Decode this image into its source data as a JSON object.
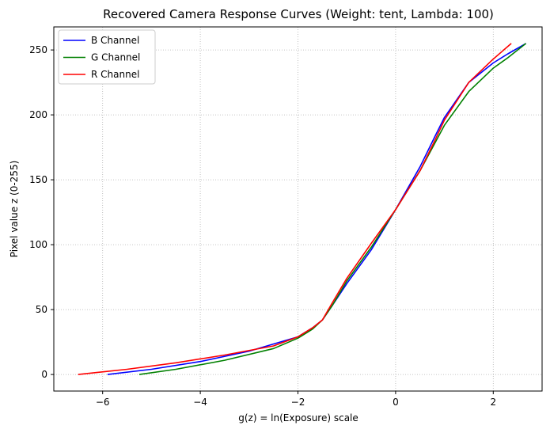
{
  "chart_data": {
    "type": "line",
    "title": "Recovered Camera Response Curves (Weight: tent, Lambda: 100)",
    "xlabel": "g(z) = ln(Exposure) scale",
    "ylabel": "Pixel value z (0-255)",
    "xlim": [
      -7.0,
      3.0
    ],
    "ylim": [
      -12.75,
      267.75
    ],
    "xticks": [
      -6,
      -4,
      -2,
      0,
      2
    ],
    "xtick_labels": [
      "−6",
      "−4",
      "−2",
      "0",
      "2"
    ],
    "yticks": [
      0,
      50,
      100,
      150,
      200,
      250
    ],
    "ytick_labels": [
      "0",
      "50",
      "100",
      "150",
      "200",
      "250"
    ],
    "grid": true,
    "legend_position": "upper-left",
    "series": [
      {
        "name": "B Channel",
        "color": "#0000ff",
        "points": [
          [
            -5.9,
            0
          ],
          [
            -5.0,
            4
          ],
          [
            -4.0,
            10
          ],
          [
            -3.0,
            18
          ],
          [
            -2.0,
            29
          ],
          [
            -1.7,
            36
          ],
          [
            -1.5,
            42
          ],
          [
            -1.3,
            53
          ],
          [
            -1.0,
            70
          ],
          [
            -0.5,
            96
          ],
          [
            0.0,
            127
          ],
          [
            0.5,
            160
          ],
          [
            0.8,
            183
          ],
          [
            1.0,
            198
          ],
          [
            1.5,
            225
          ],
          [
            2.0,
            240
          ],
          [
            2.3,
            247
          ],
          [
            2.67,
            255
          ]
        ]
      },
      {
        "name": "G Channel",
        "color": "#008000",
        "points": [
          [
            -5.25,
            0
          ],
          [
            -4.5,
            4
          ],
          [
            -3.5,
            11
          ],
          [
            -2.5,
            20
          ],
          [
            -2.0,
            28
          ],
          [
            -1.7,
            35
          ],
          [
            -1.5,
            42
          ],
          [
            -1.3,
            53
          ],
          [
            -1.0,
            72
          ],
          [
            -0.5,
            98
          ],
          [
            0.0,
            127
          ],
          [
            0.5,
            157
          ],
          [
            0.8,
            178
          ],
          [
            1.0,
            192
          ],
          [
            1.5,
            218
          ],
          [
            2.0,
            236
          ],
          [
            2.3,
            244
          ],
          [
            2.67,
            255
          ]
        ]
      },
      {
        "name": "R Channel",
        "color": "#ff0000",
        "points": [
          [
            -6.5,
            0
          ],
          [
            -5.5,
            4
          ],
          [
            -4.5,
            9
          ],
          [
            -3.5,
            15
          ],
          [
            -2.5,
            22
          ],
          [
            -2.0,
            29
          ],
          [
            -1.7,
            36
          ],
          [
            -1.5,
            42
          ],
          [
            -1.3,
            55
          ],
          [
            -1.0,
            74
          ],
          [
            -0.5,
            101
          ],
          [
            0.0,
            127
          ],
          [
            0.5,
            157
          ],
          [
            0.8,
            180
          ],
          [
            1.0,
            196
          ],
          [
            1.5,
            225
          ],
          [
            2.0,
            243
          ],
          [
            2.37,
            255
          ]
        ]
      }
    ]
  }
}
